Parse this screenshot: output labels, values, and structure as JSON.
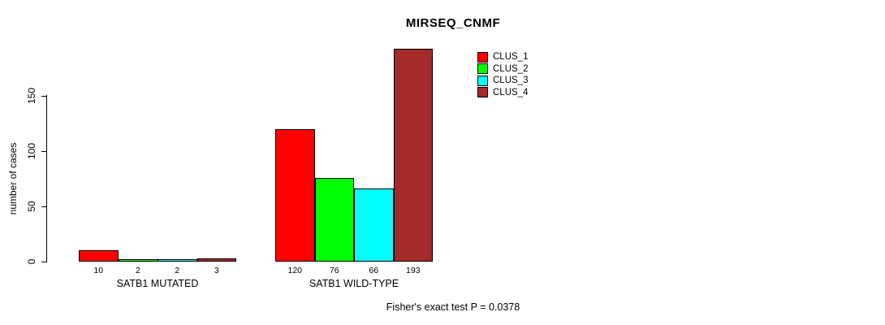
{
  "chart_data": {
    "type": "bar",
    "title": "MIRSEQ_CNMF",
    "xlabel": "",
    "ylabel": "number of cases",
    "ylim": [
      0,
      150
    ],
    "yticks": [
      "0",
      "50",
      "100",
      "150"
    ],
    "grid": false,
    "legend_position": "upper-middle",
    "groups": [
      "SATB1 MUTATED",
      "SATB1 WILD-TYPE"
    ],
    "series": [
      {
        "name": "CLUS_1",
        "color": "#ff0000",
        "values": [
          10,
          120
        ]
      },
      {
        "name": "CLUS_2",
        "color": "#00ff00",
        "values": [
          2,
          76
        ]
      },
      {
        "name": "CLUS_3",
        "color": "#00ffff",
        "values": [
          2,
          66
        ]
      },
      {
        "name": "CLUS_4",
        "color": "#a52a2a",
        "values": [
          3,
          193
        ]
      }
    ],
    "bar_labels": [
      [
        "10",
        "2",
        "2",
        "3"
      ],
      [
        "120",
        "76",
        "66",
        "193"
      ]
    ],
    "annotation": "Fisher's exact test P = 0.0378"
  }
}
